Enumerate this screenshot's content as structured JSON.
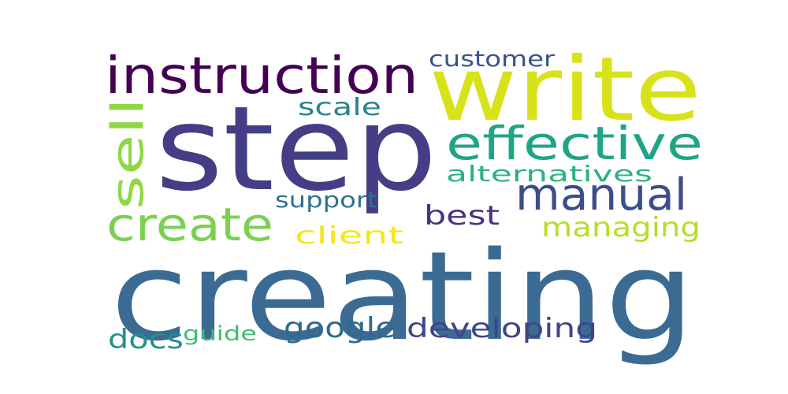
{
  "words": [
    {
      "text": "creating",
      "color": "#3b6b93"
    },
    {
      "text": "step",
      "color": "#433e85"
    },
    {
      "text": "write",
      "color": "#d8e219"
    },
    {
      "text": "instruction",
      "color": "#440154"
    },
    {
      "text": "effective",
      "color": "#20a486"
    },
    {
      "text": "manual",
      "color": "#3d4d8a"
    },
    {
      "text": "create",
      "color": "#7ad151"
    },
    {
      "text": "sell",
      "color": "#8fd744"
    },
    {
      "text": "customer",
      "color": "#3a528b"
    },
    {
      "text": "scale",
      "color": "#25848e"
    },
    {
      "text": "alternatives",
      "color": "#2db27d"
    },
    {
      "text": "support",
      "color": "#2c728e"
    },
    {
      "text": "best",
      "color": "#46327e"
    },
    {
      "text": "managing",
      "color": "#b5de2b"
    },
    {
      "text": "client",
      "color": "#f5e61e"
    },
    {
      "text": "google",
      "color": "#306a8e"
    },
    {
      "text": "developing",
      "color": "#414487"
    },
    {
      "text": "docs",
      "color": "#21918c"
    },
    {
      "text": "guide",
      "color": "#3fbc73"
    }
  ]
}
